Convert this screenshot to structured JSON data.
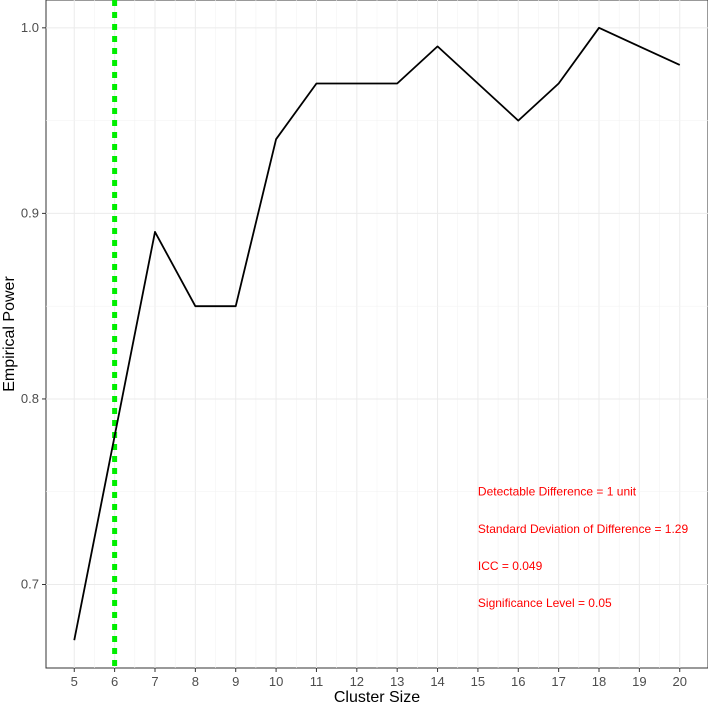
{
  "chart_data": {
    "type": "line",
    "xlabel": "Cluster Size",
    "ylabel": "Empirical Power",
    "x": [
      5,
      6,
      7,
      8,
      9,
      10,
      11,
      12,
      13,
      14,
      15,
      16,
      17,
      18,
      19,
      20
    ],
    "series": [
      {
        "values": [
          0.67,
          0.78,
          0.89,
          0.85,
          0.85,
          0.94,
          0.97,
          0.97,
          0.97,
          0.99,
          0.97,
          0.95,
          0.97,
          1.0,
          0.99,
          0.98
        ],
        "color": "#000000"
      }
    ],
    "xlim": [
      4.3,
      20.7
    ],
    "ylim": [
      0.655,
      1.015
    ],
    "x_ticks": [
      "5",
      "6",
      "7",
      "8",
      "9",
      "10",
      "11",
      "12",
      "13",
      "14",
      "15",
      "16",
      "17",
      "18",
      "19",
      "20"
    ],
    "y_ticks": [
      "0.7",
      "0.8",
      "0.9",
      "1.0"
    ],
    "vline": {
      "x": 6,
      "color": "#00ee00",
      "style": "dotted"
    },
    "annotations": [
      "Detectable Difference = 1 unit",
      "Standard Deviation of Difference = 1.29",
      "ICC = 0.049",
      "Significance Level = 0.05"
    ],
    "annotation_color": "#ff0000",
    "grid": true,
    "legend": "none"
  }
}
